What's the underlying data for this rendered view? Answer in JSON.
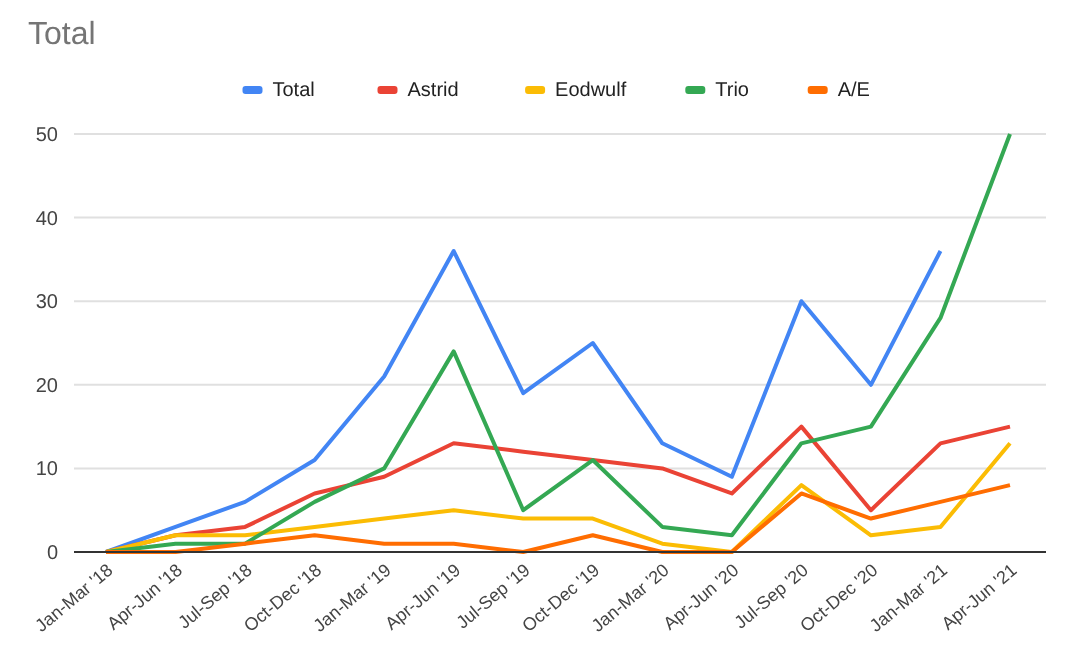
{
  "chart_data": {
    "type": "line",
    "title": "Total",
    "categories": [
      "Jan-Mar '18",
      "Apr-Jun '18",
      "Jul-Sep '18",
      "Oct-Dec '18",
      "Jan-Mar '19",
      "Apr-Jun '19",
      "Jul-Sep '19",
      "Oct-Dec '19",
      "Jan-Mar '20",
      "Apr-Jun '20",
      "Jul-Sep '20",
      "Oct-Dec '20",
      "Jan-Mar '21",
      "Apr-Jun '21"
    ],
    "series": [
      {
        "name": "Total",
        "color": "#4285f4",
        "values": [
          0,
          3,
          6,
          11,
          21,
          36,
          19,
          25,
          13,
          9,
          30,
          20,
          36,
          null
        ]
      },
      {
        "name": "Astrid",
        "color": "#ea4335",
        "values": [
          0,
          2,
          3,
          7,
          9,
          13,
          12,
          11,
          10,
          7,
          15,
          5,
          13,
          15
        ]
      },
      {
        "name": "Eodwulf",
        "color": "#fbbc04",
        "values": [
          0,
          2,
          2,
          3,
          4,
          5,
          4,
          4,
          1,
          0,
          8,
          2,
          3,
          13
        ]
      },
      {
        "name": "Trio",
        "color": "#34a853",
        "values": [
          0,
          1,
          1,
          6,
          10,
          24,
          5,
          11,
          3,
          2,
          13,
          15,
          28,
          50
        ]
      },
      {
        "name": "A/E",
        "color": "#ff6d01",
        "values": [
          0,
          0,
          1,
          2,
          1,
          1,
          0,
          2,
          0,
          0,
          7,
          4,
          6,
          8
        ]
      }
    ],
    "ylim": [
      0,
      50
    ],
    "yticks": [
      0,
      10,
      20,
      30,
      40,
      50
    ],
    "grid": "y",
    "legend": "top",
    "marker": "none",
    "line_style": "solid"
  }
}
